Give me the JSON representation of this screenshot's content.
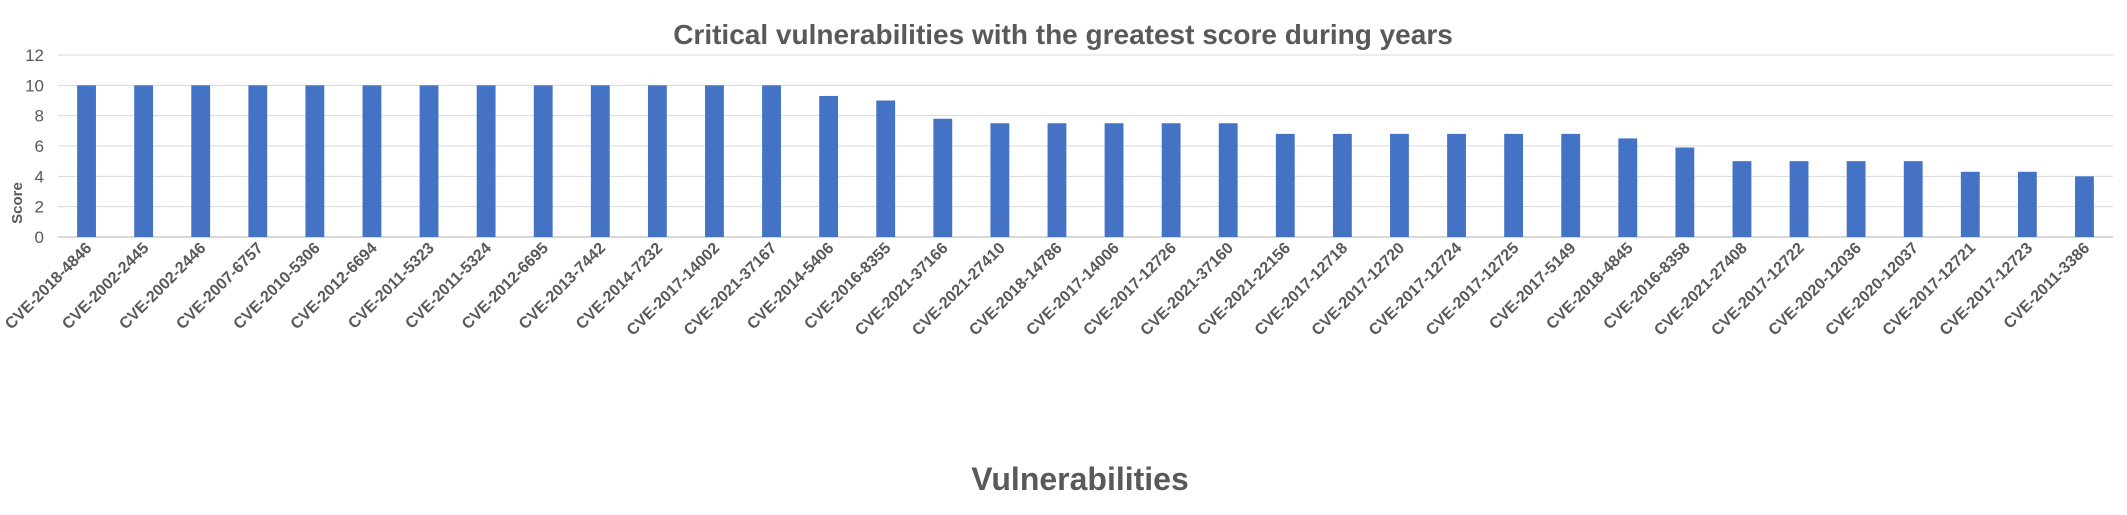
{
  "chart_data": {
    "type": "bar",
    "title": "Critical vulnerabilities with the greatest score during years",
    "xlabel": "Vulnerabilities",
    "ylabel": "Score",
    "ylim": [
      0,
      12
    ],
    "yticks": [
      0,
      2,
      4,
      6,
      8,
      10,
      12
    ],
    "grid": true,
    "legend": "none",
    "bar_color": "#4472c4",
    "categories": [
      "CVE-2018-4846",
      "CVE-2002-2445",
      "CVE-2002-2446",
      "CVE-2007-6757",
      "CVE-2010-5306",
      "CVE-2012-6694",
      "CVE-2011-5323",
      "CVE-2011-5324",
      "CVE-2012-6695",
      "CVE-2013-7442",
      "CVE-2014-7232",
      "CVE-2017-14002",
      "CVE-2021-37167",
      "CVE-2014-5406",
      "CVE-2016-8355",
      "CVE-2021-37166",
      "CVE-2021-27410",
      "CVE-2018-14786",
      "CVE-2017-14006",
      "CVE-2017-12726",
      "CVE-2021-37160",
      "CVE-2021-22156",
      "CVE-2017-12718",
      "CVE-2017-12720",
      "CVE-2017-12724",
      "CVE-2017-12725",
      "CVE-2017-5149",
      "CVE-2018-4845",
      "CVE-2016-8358",
      "CVE-2021-27408",
      "CVE-2017-12722",
      "CVE-2020-12036",
      "CVE-2020-12037",
      "CVE-2017-12721",
      "CVE-2017-12723",
      "CVE-2011-3386"
    ],
    "values": [
      10,
      10,
      10,
      10,
      10,
      10,
      10,
      10,
      10,
      10,
      10,
      10,
      10,
      9.3,
      9.0,
      7.8,
      7.5,
      7.5,
      7.5,
      7.5,
      7.5,
      6.8,
      6.8,
      6.8,
      6.8,
      6.8,
      6.8,
      6.5,
      5.9,
      5.0,
      5.0,
      5.0,
      5.0,
      4.3,
      4.3,
      4.0
    ]
  }
}
